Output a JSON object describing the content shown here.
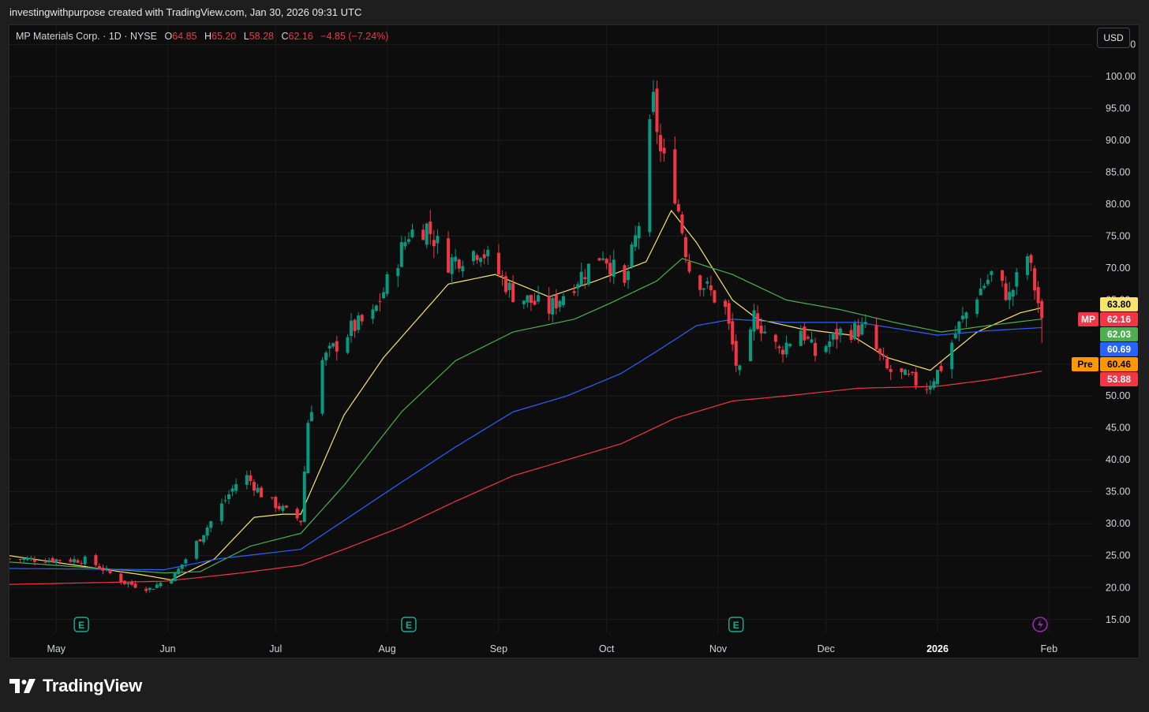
{
  "header": {
    "text": "investingwithpurpose created with TradingView.com, Jan 30, 2026 09:31 UTC"
  },
  "legend": {
    "symbol": "MP Materials Corp. · 1D · NYSE",
    "o_label": "O",
    "o_value": "64.85",
    "h_label": "H",
    "h_value": "65.20",
    "l_label": "L",
    "l_value": "58.28",
    "c_label": "C",
    "c_value": "62.16",
    "change": "−4.85 (−7.24%)"
  },
  "currency_button": "USD",
  "footer": {
    "brand": "TradingView"
  },
  "colors": {
    "up": "#089981",
    "down": "#f23645",
    "ma_yellow": "#f7e46b",
    "ma_green": "#4caf50",
    "ma_blue": "#2962ff",
    "ma_red": "#f23645",
    "pre": "#ff9800"
  },
  "chart_data": {
    "type": "candlestick",
    "title": "MP Materials Corp. · 1D · NYSE",
    "ylim": [
      13,
      108
    ],
    "y_ticks": [
      "15.00",
      "20.00",
      "25.00",
      "30.00",
      "35.00",
      "40.00",
      "45.00",
      "50.00",
      "55.00",
      "60.00",
      "65.00",
      "70.00",
      "75.00",
      "80.00",
      "85.00",
      "90.00",
      "95.00",
      "100.00",
      "105.00"
    ],
    "x_ticks": [
      {
        "label": "May",
        "date": "2025-05-01"
      },
      {
        "label": "Jun",
        "date": "2025-06-01"
      },
      {
        "label": "Jul",
        "date": "2025-07-01"
      },
      {
        "label": "Aug",
        "date": "2025-08-01"
      },
      {
        "label": "Sep",
        "date": "2025-09-01"
      },
      {
        "label": "Oct",
        "date": "2025-10-01"
      },
      {
        "label": "Nov",
        "date": "2025-11-01"
      },
      {
        "label": "Dec",
        "date": "2025-12-01"
      },
      {
        "label": "2026",
        "date": "2026-01-01",
        "bold": true
      },
      {
        "label": "Feb",
        "date": "2026-02-01"
      }
    ],
    "x_range": [
      "2025-04-18",
      "2026-02-13"
    ],
    "price_waypoints": [
      {
        "date": "2025-04-18",
        "close": 24.5
      },
      {
        "date": "2025-05-10",
        "close": 24.3
      },
      {
        "date": "2025-05-20",
        "close": 20.8
      },
      {
        "date": "2025-05-27",
        "close": 19.8
      },
      {
        "date": "2025-06-03",
        "close": 22.0
      },
      {
        "date": "2025-06-12",
        "close": 29.5
      },
      {
        "date": "2025-06-22",
        "close": 38.0
      },
      {
        "date": "2025-06-28",
        "close": 34.0
      },
      {
        "date": "2025-07-08",
        "close": 30.5
      },
      {
        "date": "2025-07-10",
        "close": 46.0
      },
      {
        "date": "2025-07-14",
        "close": 55.5
      },
      {
        "date": "2025-07-22",
        "close": 60.5
      },
      {
        "date": "2025-07-28",
        "close": 62.5
      },
      {
        "date": "2025-08-07",
        "close": 75.5
      },
      {
        "date": "2025-08-12",
        "close": 76.5
      },
      {
        "date": "2025-08-18",
        "close": 71.0
      },
      {
        "date": "2025-08-27",
        "close": 73.0
      },
      {
        "date": "2025-09-05",
        "close": 66.0
      },
      {
        "date": "2025-09-15",
        "close": 63.5
      },
      {
        "date": "2025-09-19",
        "close": 66.0
      },
      {
        "date": "2025-09-30",
        "close": 72.5
      },
      {
        "date": "2025-10-06",
        "close": 67.0
      },
      {
        "date": "2025-10-10",
        "close": 77.0
      },
      {
        "date": "2025-10-14",
        "close": 96.0
      },
      {
        "date": "2025-10-16",
        "close": 88.0
      },
      {
        "date": "2025-10-20",
        "close": 82.0
      },
      {
        "date": "2025-10-24",
        "close": 70.0
      },
      {
        "date": "2025-11-03",
        "close": 63.5
      },
      {
        "date": "2025-11-06",
        "close": 55.0
      },
      {
        "date": "2025-11-08",
        "close": 52.0
      },
      {
        "date": "2025-11-11",
        "close": 62.5
      },
      {
        "date": "2025-11-18",
        "close": 57.0
      },
      {
        "date": "2025-11-24",
        "close": 60.5
      },
      {
        "date": "2025-11-28",
        "close": 56.5
      },
      {
        "date": "2025-12-05",
        "close": 60.0
      },
      {
        "date": "2025-12-12",
        "close": 60.5
      },
      {
        "date": "2025-12-16",
        "close": 56.0
      },
      {
        "date": "2025-12-18",
        "close": 54.0
      },
      {
        "date": "2025-12-29",
        "close": 51.5
      },
      {
        "date": "2026-01-02",
        "close": 54.5
      },
      {
        "date": "2026-01-07",
        "close": 61.0
      },
      {
        "date": "2026-01-12",
        "close": 66.0
      },
      {
        "date": "2026-01-16",
        "close": 69.0
      },
      {
        "date": "2026-01-21",
        "close": 65.5
      },
      {
        "date": "2026-01-26",
        "close": 72.0
      },
      {
        "date": "2026-01-28",
        "close": 67.0
      },
      {
        "date": "2026-01-30",
        "close": 62.16
      }
    ],
    "last_bar": {
      "date": "2026-01-30",
      "open": 64.85,
      "high": 65.2,
      "low": 58.28,
      "close": 62.16
    },
    "moving_averages": [
      {
        "color": "#f7e46b",
        "last": 63.8,
        "points": [
          {
            "date": "2025-04-18",
            "value": 25.0
          },
          {
            "date": "2025-05-25",
            "value": 22.0
          },
          {
            "date": "2025-06-02",
            "value": 21.2
          },
          {
            "date": "2025-06-14",
            "value": 24.5
          },
          {
            "date": "2025-06-25",
            "value": 31.0
          },
          {
            "date": "2025-07-03",
            "value": 31.5
          },
          {
            "date": "2025-07-08",
            "value": 31.5
          },
          {
            "date": "2025-07-20",
            "value": 47.0
          },
          {
            "date": "2025-07-31",
            "value": 56.0
          },
          {
            "date": "2025-08-18",
            "value": 67.5
          },
          {
            "date": "2025-08-31",
            "value": 69.0
          },
          {
            "date": "2025-09-15",
            "value": 65.5
          },
          {
            "date": "2025-09-28",
            "value": 68.0
          },
          {
            "date": "2025-10-05",
            "value": 69.5
          },
          {
            "date": "2025-10-12",
            "value": 71.0
          },
          {
            "date": "2025-10-19",
            "value": 79.0
          },
          {
            "date": "2025-10-26",
            "value": 74.0
          },
          {
            "date": "2025-11-05",
            "value": 65.0
          },
          {
            "date": "2025-11-12",
            "value": 62.0
          },
          {
            "date": "2025-11-24",
            "value": 60.5
          },
          {
            "date": "2025-12-08",
            "value": 59.5
          },
          {
            "date": "2025-12-18",
            "value": 56.0
          },
          {
            "date": "2025-12-30",
            "value": 54.0
          },
          {
            "date": "2026-01-12",
            "value": 60.0
          },
          {
            "date": "2026-01-24",
            "value": 63.0
          },
          {
            "date": "2026-01-30",
            "value": 63.8
          }
        ]
      },
      {
        "color": "#4caf50",
        "last": 62.03,
        "points": [
          {
            "date": "2025-04-18",
            "value": 24.0
          },
          {
            "date": "2025-05-31",
            "value": 22.3
          },
          {
            "date": "2025-06-10",
            "value": 22.5
          },
          {
            "date": "2025-06-24",
            "value": 26.5
          },
          {
            "date": "2025-07-08",
            "value": 28.5
          },
          {
            "date": "2025-07-20",
            "value": 36.0
          },
          {
            "date": "2025-08-05",
            "value": 47.5
          },
          {
            "date": "2025-08-20",
            "value": 55.5
          },
          {
            "date": "2025-09-05",
            "value": 60.0
          },
          {
            "date": "2025-09-22",
            "value": 62.0
          },
          {
            "date": "2025-10-02",
            "value": 64.5
          },
          {
            "date": "2025-10-15",
            "value": 68.0
          },
          {
            "date": "2025-10-22",
            "value": 71.5
          },
          {
            "date": "2025-11-05",
            "value": 69.0
          },
          {
            "date": "2025-11-20",
            "value": 65.0
          },
          {
            "date": "2025-12-05",
            "value": 63.5
          },
          {
            "date": "2025-12-20",
            "value": 61.5
          },
          {
            "date": "2026-01-02",
            "value": 60.0
          },
          {
            "date": "2026-01-15",
            "value": 61.0
          },
          {
            "date": "2026-01-30",
            "value": 62.03
          }
        ]
      },
      {
        "color": "#2962ff",
        "last": 60.69,
        "points": [
          {
            "date": "2025-04-18",
            "value": 23.0
          },
          {
            "date": "2025-05-31",
            "value": 22.8
          },
          {
            "date": "2025-06-15",
            "value": 24.5
          },
          {
            "date": "2025-07-08",
            "value": 26.0
          },
          {
            "date": "2025-07-20",
            "value": 30.5
          },
          {
            "date": "2025-08-05",
            "value": 36.5
          },
          {
            "date": "2025-08-20",
            "value": 42.0
          },
          {
            "date": "2025-09-05",
            "value": 47.5
          },
          {
            "date": "2025-09-20",
            "value": 50.0
          },
          {
            "date": "2025-10-05",
            "value": 53.5
          },
          {
            "date": "2025-10-15",
            "value": 57.0
          },
          {
            "date": "2025-10-26",
            "value": 61.0
          },
          {
            "date": "2025-11-05",
            "value": 62.0
          },
          {
            "date": "2025-11-20",
            "value": 61.5
          },
          {
            "date": "2025-12-10",
            "value": 61.5
          },
          {
            "date": "2026-01-01",
            "value": 59.5
          },
          {
            "date": "2026-01-15",
            "value": 60.2
          },
          {
            "date": "2026-01-30",
            "value": 60.69
          }
        ]
      },
      {
        "color": "#f23645",
        "last": 53.88,
        "points": [
          {
            "date": "2025-04-18",
            "value": 20.5
          },
          {
            "date": "2025-05-31",
            "value": 21.0
          },
          {
            "date": "2025-06-20",
            "value": 22.2
          },
          {
            "date": "2025-07-08",
            "value": 23.5
          },
          {
            "date": "2025-07-20",
            "value": 26.0
          },
          {
            "date": "2025-08-05",
            "value": 29.5
          },
          {
            "date": "2025-08-20",
            "value": 33.5
          },
          {
            "date": "2025-09-05",
            "value": 37.5
          },
          {
            "date": "2025-09-20",
            "value": 40.0
          },
          {
            "date": "2025-10-05",
            "value": 42.5
          },
          {
            "date": "2025-10-20",
            "value": 46.5
          },
          {
            "date": "2025-11-05",
            "value": 49.2
          },
          {
            "date": "2025-11-20",
            "value": 50.0
          },
          {
            "date": "2025-12-10",
            "value": 51.2
          },
          {
            "date": "2026-01-01",
            "value": 51.5
          },
          {
            "date": "2026-01-15",
            "value": 52.5
          },
          {
            "date": "2026-01-30",
            "value": 53.88
          }
        ]
      }
    ],
    "price_tags": [
      {
        "label": "",
        "value": "63.80",
        "color": "#f7e46b",
        "text_color": "#000000"
      },
      {
        "label": "MP",
        "value": "62.16",
        "color": "#f23645",
        "text_color": "#ffffff"
      },
      {
        "label": "",
        "value": "62.03",
        "color": "#4caf50",
        "text_color": "#ffffff"
      },
      {
        "label": "",
        "value": "60.69",
        "color": "#2962ff",
        "text_color": "#ffffff"
      },
      {
        "label": "Pre",
        "value": "60.46",
        "color": "#ff9800",
        "text_color": "#000000"
      },
      {
        "label": "",
        "value": "53.88",
        "color": "#f23645",
        "text_color": "#ffffff"
      }
    ],
    "earnings_markers": [
      {
        "date": "2025-05-08",
        "label": "E"
      },
      {
        "date": "2025-08-07",
        "label": "E"
      },
      {
        "date": "2025-11-06",
        "label": "E"
      }
    ]
  }
}
